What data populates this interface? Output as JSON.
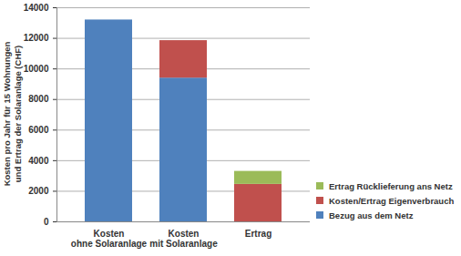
{
  "chart_data": {
    "type": "bar",
    "stacked": true,
    "y_label": "Kosten pro Jahr für 15 Wohnungen und Ertrag der Solaranlage (CHF)",
    "categories": [
      "Kosten ohne Solaranlage",
      "Kosten mit Solaranlage",
      "Ertrag"
    ],
    "series": [
      {
        "name": "Bezug aus dem Netz",
        "color": "#4f81bd",
        "values": [
          13200,
          9400,
          0
        ]
      },
      {
        "name": "Kosten/Ertrag Eigenverbrauch",
        "color": "#c0504d",
        "values": [
          0,
          2450,
          2450
        ]
      },
      {
        "name": "Ertrag Rücklieferung ans Netz",
        "color": "#9bbb59",
        "values": [
          0,
          0,
          850
        ]
      }
    ],
    "ylim": [
      0,
      14000
    ],
    "yticks": [
      0,
      2000,
      4000,
      6000,
      8000,
      10000,
      12000,
      14000
    ],
    "grid": true,
    "legend": "right"
  }
}
